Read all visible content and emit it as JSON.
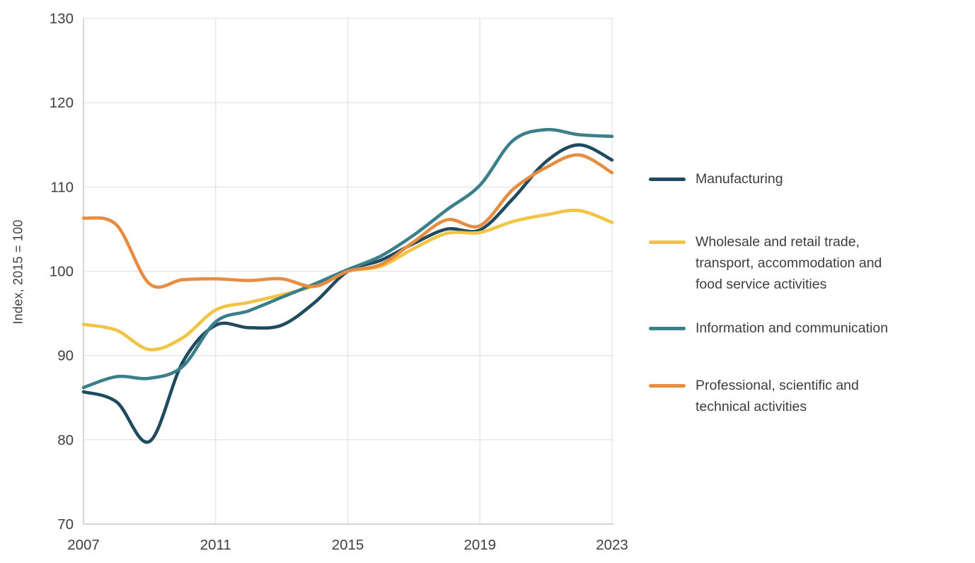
{
  "figure": {
    "background": "#ffffff",
    "text_color": "#3f3f3f",
    "gridline_color": "#e4e4e4",
    "axis_line_color": "#c6c6c6"
  },
  "chart_data": {
    "type": "line",
    "title": "",
    "xlabel": "",
    "ylabel": "Index, 2015 = 100",
    "ylim": [
      70,
      130
    ],
    "ytick_step": 10,
    "yticks": [
      70,
      80,
      90,
      100,
      110,
      120,
      130
    ],
    "xlim": [
      2007,
      2023
    ],
    "xticks": [
      2007,
      2011,
      2015,
      2019,
      2023
    ],
    "grid": true,
    "legend_position": "right",
    "x": [
      2007,
      2008,
      2009,
      2010,
      2011,
      2012,
      2013,
      2014,
      2015,
      2016,
      2017,
      2018,
      2019,
      2020,
      2021,
      2022,
      2023
    ],
    "series": [
      {
        "name": "manufacturing",
        "label": "Manufacturing",
        "color": "#1f4a5f",
        "values": [
          85.7,
          84.5,
          79.8,
          89.2,
          93.6,
          93.3,
          93.6,
          96.3,
          100.0,
          101.3,
          103.3,
          105.0,
          104.9,
          108.6,
          113.0,
          115.0,
          113.2
        ]
      },
      {
        "name": "wholesale_retail_transport_accommodation_food",
        "label": "Wholesale and retail trade,\ntransport, accommodation and\nfood service activities",
        "color": "#f1c444",
        "values": [
          93.7,
          93.0,
          90.7,
          92.1,
          95.4,
          96.3,
          97.2,
          98.3,
          100.0,
          100.6,
          102.7,
          104.5,
          104.6,
          105.9,
          106.7,
          107.2,
          105.8
        ]
      },
      {
        "name": "information_communication",
        "label": "Information and communication",
        "color": "#3a7f8a",
        "values": [
          86.2,
          87.5,
          87.3,
          88.7,
          94.0,
          95.3,
          96.9,
          98.5,
          100.2,
          101.8,
          104.3,
          107.3,
          110.2,
          115.5,
          116.8,
          116.2,
          116.0
        ]
      },
      {
        "name": "professional_scientific_technical",
        "label": "Professional, scientific and\ntechnical activities",
        "color": "#e78c40",
        "values": [
          106.3,
          105.5,
          98.5,
          99.0,
          99.1,
          98.9,
          99.1,
          98.2,
          100.0,
          100.8,
          103.5,
          106.1,
          105.4,
          109.7,
          112.3,
          113.8,
          111.7
        ]
      }
    ]
  }
}
